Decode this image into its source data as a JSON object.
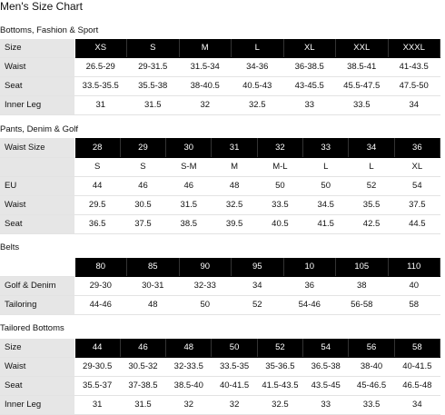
{
  "title": "Men's Size Chart",
  "sections": [
    {
      "title": "Bottoms, Fashion & Sport",
      "header_label": "Size",
      "header": [
        "XS",
        "S",
        "M",
        "L",
        "XL",
        "XXL",
        "XXXL"
      ],
      "rows": [
        {
          "label": "Waist",
          "values": [
            "26.5-29",
            "29-31.5",
            "31.5-34",
            "34-36",
            "36-38.5",
            "38.5-41",
            "41-43.5"
          ]
        },
        {
          "label": "Seat",
          "values": [
            "33.5-35.5",
            "35.5-38",
            "38-40.5",
            "40.5-43",
            "43-45.5",
            "45.5-47.5",
            "47.5-50"
          ]
        },
        {
          "label": "Inner Leg",
          "values": [
            "31",
            "31.5",
            "32",
            "32.5",
            "33",
            "33.5",
            "34"
          ]
        }
      ]
    },
    {
      "title": "Pants, Denim & Golf",
      "header_label": "Waist Size",
      "header": [
        "28",
        "29",
        "30",
        "31",
        "32",
        "33",
        "34",
        "36"
      ],
      "rows": [
        {
          "label": "",
          "values": [
            "S",
            "S",
            "S-M",
            "M",
            "M-L",
            "L",
            "L",
            "XL"
          ]
        },
        {
          "label": "EU",
          "values": [
            "44",
            "46",
            "46",
            "48",
            "50",
            "50",
            "52",
            "54"
          ]
        },
        {
          "label": "Waist",
          "values": [
            "29.5",
            "30.5",
            "31.5",
            "32.5",
            "33.5",
            "34.5",
            "35.5",
            "37.5"
          ]
        },
        {
          "label": "Seat",
          "values": [
            "36.5",
            "37.5",
            "38.5",
            "39.5",
            "40.5",
            "41.5",
            "42.5",
            "44.5"
          ]
        }
      ]
    },
    {
      "title": "Belts",
      "header_label": "",
      "header": [
        "80",
        "85",
        "90",
        "95",
        "10",
        "105",
        "110"
      ],
      "rows": [
        {
          "label": "Golf & Denim",
          "values": [
            "29-30",
            "30-31",
            "32-33",
            "34",
            "36",
            "38",
            "40"
          ]
        },
        {
          "label": "Tailoring",
          "values": [
            "44-46",
            "48",
            "50",
            "52",
            "54-46",
            "56-58",
            "58"
          ]
        }
      ]
    },
    {
      "title": "Tailored Bottoms",
      "header_label": "Size",
      "header": [
        "44",
        "46",
        "48",
        "50",
        "52",
        "54",
        "56",
        "58"
      ],
      "rows": [
        {
          "label": "Waist",
          "values": [
            "29-30.5",
            "30.5-32",
            "32-33.5",
            "33.5-35",
            "35-36.5",
            "36.5-38",
            "38-40",
            "40-41.5"
          ]
        },
        {
          "label": "Seat",
          "values": [
            "35.5-37",
            "37-38.5",
            "38.5-40",
            "40-41.5",
            "41.5-43.5",
            "43.5-45",
            "45-46.5",
            "46.5-48"
          ]
        },
        {
          "label": "Inner Leg",
          "values": [
            "31",
            "31.5",
            "32",
            "32",
            "32.5",
            "33",
            "33.5",
            "34"
          ]
        }
      ]
    }
  ]
}
